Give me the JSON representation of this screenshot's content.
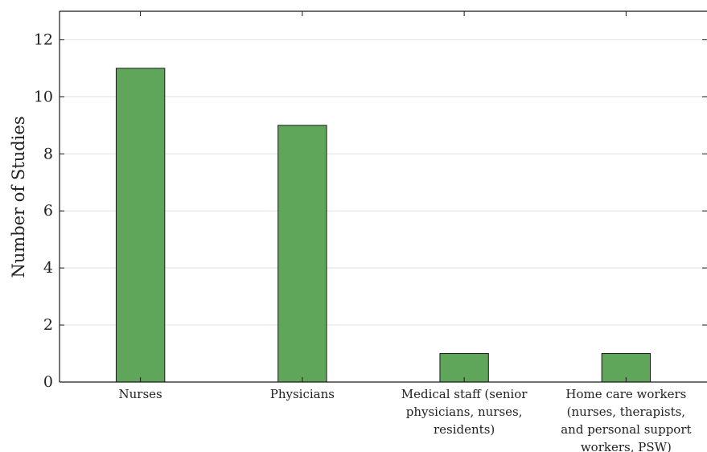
{
  "chart_data": {
    "type": "bar",
    "categories": [
      [
        "Nurses"
      ],
      [
        "Physicians"
      ],
      [
        "Medical staff (senior",
        "physicians, nurses,",
        "residents)"
      ],
      [
        "Home care workers",
        "(nurses, therapists,",
        "and personal support",
        "workers, PSW)"
      ]
    ],
    "values": [
      11,
      9,
      1,
      1
    ],
    "title": "",
    "xlabel": "",
    "ylabel": "Number of Studies",
    "ylim": [
      0,
      13
    ],
    "yticks": [
      0,
      2,
      4,
      6,
      8,
      10,
      12
    ],
    "grid": "horizontal",
    "bar_color": "#5fa55a",
    "bar_edge_color": "#1a1a1a",
    "grid_color": "#e6e6e6"
  }
}
